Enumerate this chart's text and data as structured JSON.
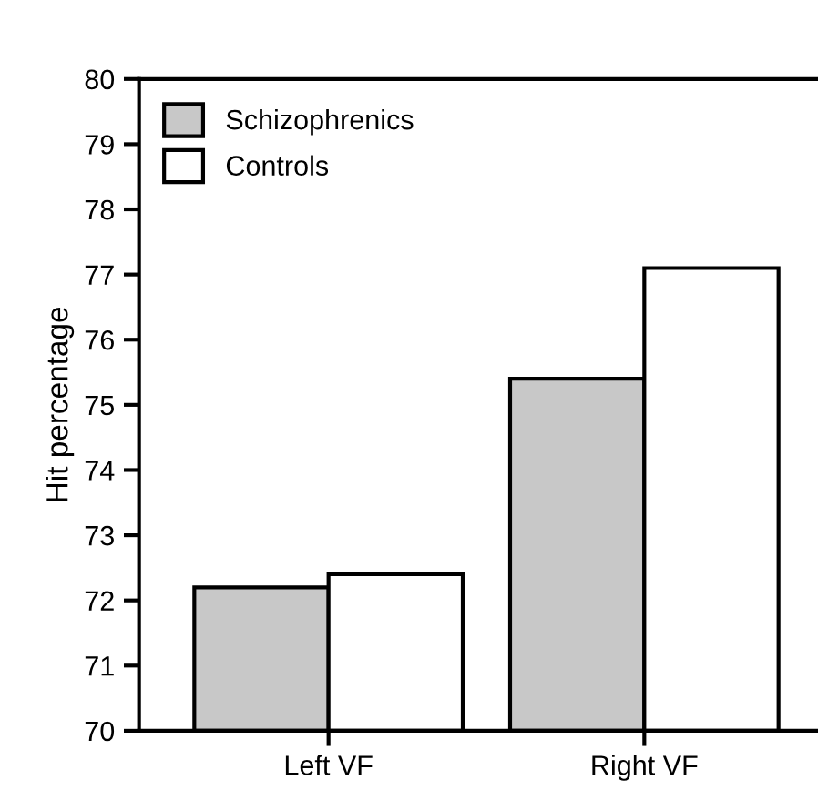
{
  "chart_data": {
    "type": "bar",
    "ylabel": "Hit percentage",
    "categories": [
      "Left VF",
      "Right VF"
    ],
    "series": [
      {
        "name": "Schizophrenics",
        "color": "#c8c8c8",
        "values": [
          72.2,
          75.4
        ]
      },
      {
        "name": "Controls",
        "color": "#ffffff",
        "values": [
          72.4,
          77.1
        ]
      }
    ],
    "ylim": [
      70,
      80
    ],
    "yticks": [
      70,
      71,
      72,
      73,
      74,
      75,
      76,
      77,
      78,
      79,
      80
    ],
    "grid": false,
    "legend": "top left"
  }
}
